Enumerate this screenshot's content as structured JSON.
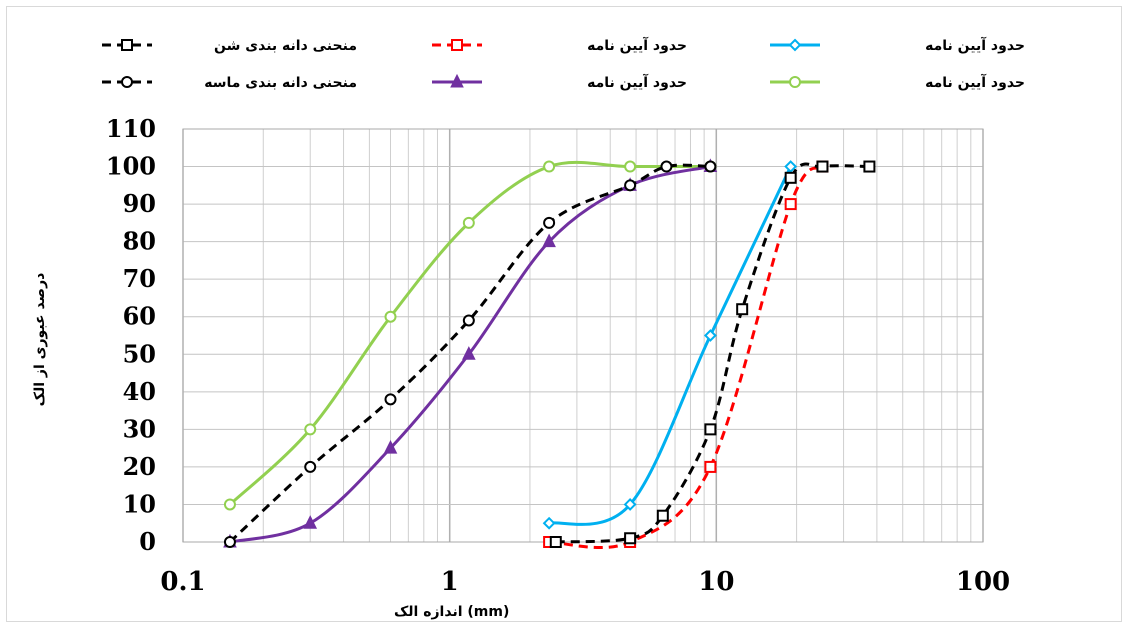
{
  "chart_data": {
    "type": "line",
    "x_scale": "log",
    "xlim": [
      0.1,
      100
    ],
    "ylim": [
      0,
      110
    ],
    "y_ticks": [
      "0",
      "10",
      "20",
      "30",
      "40",
      "50",
      "60",
      "70",
      "80",
      "90",
      "100",
      "110"
    ],
    "x_ticks": [
      "0.1",
      "1",
      "10",
      "100"
    ],
    "xlabel": "اندازه الک  (mm)",
    "ylabel": "درصد عبوری از الک",
    "grid": true,
    "legend_position": "top",
    "series": [
      {
        "name": "حدود آیین نامه",
        "color": "#00B0F0",
        "dash": "solid",
        "marker": "diamond",
        "x": [
          2.36,
          4.75,
          9.5,
          19
        ],
        "y": [
          5,
          10,
          55,
          100
        ]
      },
      {
        "name": "حدود آیین نامه",
        "color": "#FF0000",
        "dash": "dashed",
        "marker": "square",
        "x": [
          2.36,
          4.75,
          9.5,
          19,
          25
        ],
        "y": [
          0,
          0,
          20,
          90,
          100
        ]
      },
      {
        "name": "منحنی دانه بندی شن",
        "color": "#000000",
        "dash": "dashed",
        "marker": "square",
        "x": [
          2.5,
          4.75,
          6.3,
          9.5,
          12.5,
          19,
          25,
          37.5
        ],
        "y": [
          0,
          1,
          7,
          30,
          62,
          97,
          100,
          100
        ]
      },
      {
        "name": "حدود آیین نامه",
        "color": "#92D050",
        "dash": "solid",
        "marker": "circle",
        "x": [
          0.15,
          0.3,
          0.6,
          1.18,
          2.36,
          4.75,
          9.5
        ],
        "y": [
          10,
          30,
          60,
          85,
          100,
          100,
          100
        ]
      },
      {
        "name": "حدود آیین نامه",
        "color": "#7030A0",
        "dash": "solid",
        "marker": "triangle",
        "x": [
          0.15,
          0.3,
          0.6,
          1.18,
          2.36,
          4.75,
          9.5
        ],
        "y": [
          0,
          5,
          25,
          50,
          80,
          95,
          100
        ]
      },
      {
        "name": "منحنی دانه بندی ماسه",
        "color": "#000000",
        "dash": "dashed",
        "marker": "circle",
        "x": [
          0.15,
          0.3,
          0.6,
          1.18,
          2.36,
          4.75,
          6.5,
          9.5
        ],
        "y": [
          0,
          20,
          38,
          59,
          85,
          95,
          100,
          100
        ]
      }
    ]
  }
}
